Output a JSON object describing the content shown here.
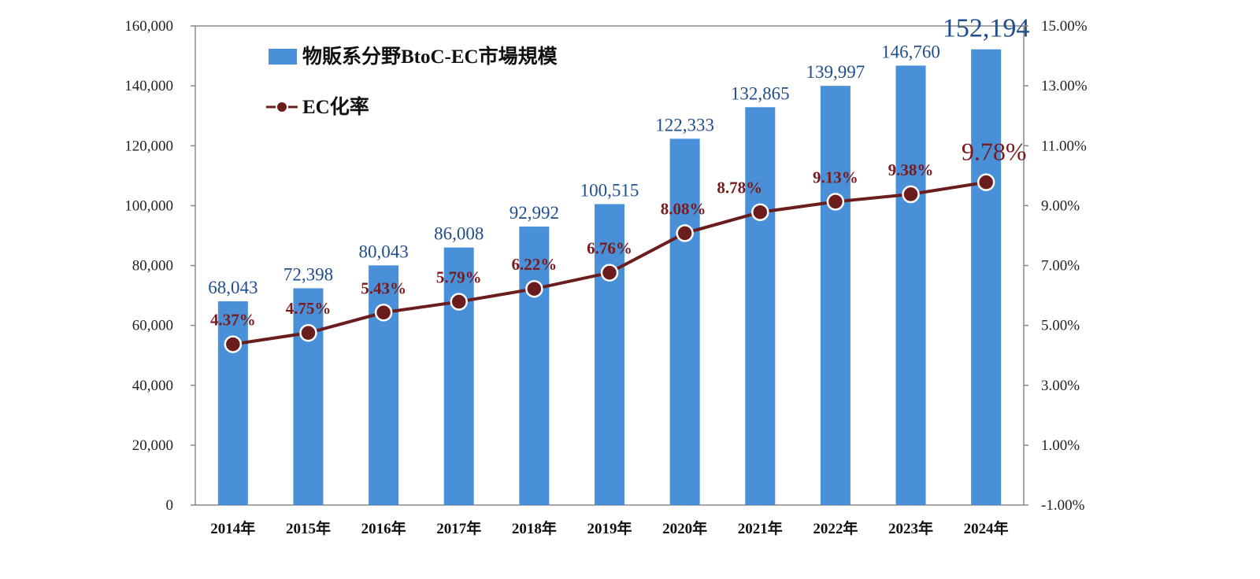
{
  "chart_data": {
    "type": "bar",
    "categories": [
      "2014年",
      "2015年",
      "2016年",
      "2017年",
      "2018年",
      "2019年",
      "2020年",
      "2021年",
      "2022年",
      "2023年",
      "2024年"
    ],
    "series": [
      {
        "name": "物販系分野BtoC-EC市場規模",
        "type": "bar",
        "axis": "left",
        "color": "#4a90d9",
        "values": [
          68043,
          72398,
          80043,
          86008,
          92992,
          100515,
          122333,
          132865,
          139997,
          146760,
          152194
        ],
        "labels": [
          "68,043",
          "72,398",
          "80,043",
          "86,008",
          "92,992",
          "100,515",
          "122,333",
          "132,865",
          "139,997",
          "146,760",
          "152,194"
        ]
      },
      {
        "name": "EC化率",
        "type": "line",
        "axis": "right",
        "color": "#6b1d1d",
        "values": [
          4.37,
          4.75,
          5.43,
          5.79,
          6.22,
          6.76,
          8.08,
          8.78,
          9.13,
          9.38,
          9.78
        ],
        "labels": [
          "4.37%",
          "4.75%",
          "5.43%",
          "5.79%",
          "6.22%",
          "6.76%",
          "8.08%",
          "8.78%",
          "9.13%",
          "9.38%",
          "9.78%"
        ]
      }
    ],
    "y_left": {
      "range": [
        0,
        160000
      ],
      "ticks": [
        "0",
        "20,000",
        "40,000",
        "60,000",
        "80,000",
        "100,000",
        "120,000",
        "140,000",
        "160,000"
      ]
    },
    "y_right": {
      "range": [
        -1,
        15
      ],
      "ticks": [
        "-1.00%",
        "1.00%",
        "3.00%",
        "5.00%",
        "7.00%",
        "9.00%",
        "11.00%",
        "13.00%",
        "15.00%"
      ]
    },
    "grid": false,
    "legend_position": "top-left"
  }
}
